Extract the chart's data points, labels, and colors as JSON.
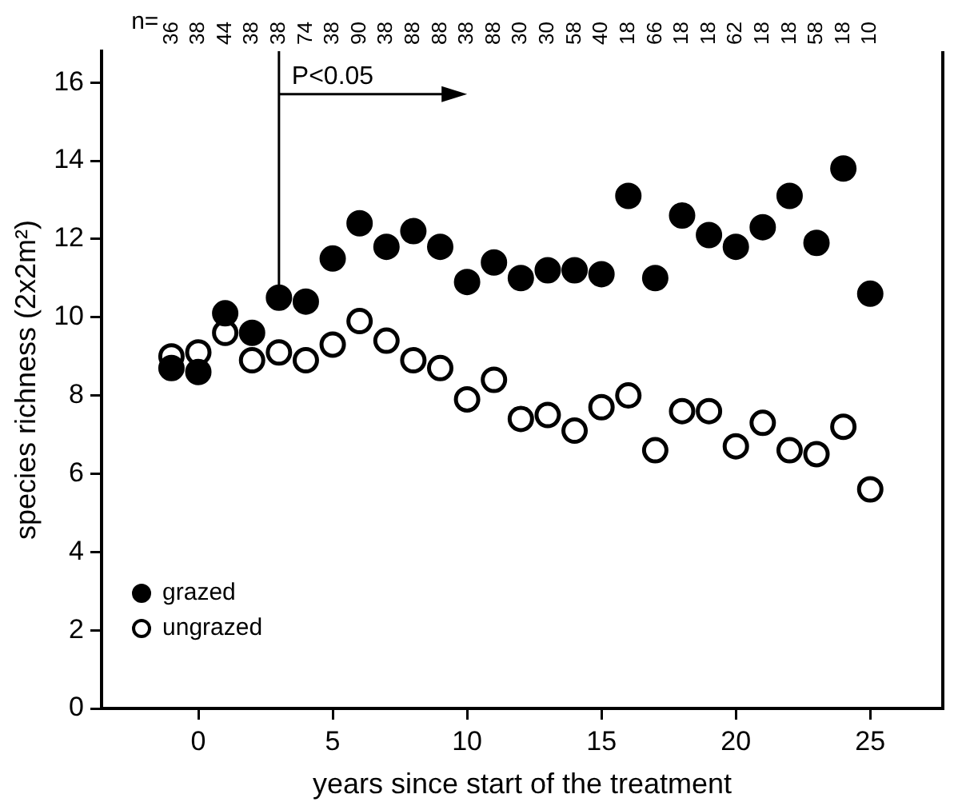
{
  "chart_data": {
    "type": "scatter",
    "xlabel": "years since start of the treatment",
    "ylabel": "species richness (2x2m²)",
    "x": [
      -1,
      0,
      1,
      2,
      3,
      4,
      5,
      6,
      7,
      8,
      9,
      10,
      11,
      12,
      13,
      14,
      15,
      16,
      17,
      18,
      19,
      20,
      21,
      22,
      23,
      24,
      25
    ],
    "series": [
      {
        "name": "grazed",
        "color": "#000000",
        "values": [
          8.7,
          8.6,
          10.1,
          9.6,
          10.5,
          10.4,
          11.5,
          12.4,
          11.8,
          12.2,
          11.8,
          10.9,
          11.4,
          11.0,
          11.2,
          11.2,
          11.1,
          13.1,
          11.0,
          12.6,
          12.1,
          11.8,
          12.3,
          13.1,
          11.9,
          13.8,
          10.6
        ]
      },
      {
        "name": "ungrazed",
        "color": "#000000",
        "values": [
          9.0,
          9.1,
          9.6,
          8.9,
          9.1,
          8.9,
          9.3,
          9.9,
          9.4,
          8.9,
          8.7,
          7.9,
          8.4,
          7.4,
          7.5,
          7.1,
          7.7,
          8.0,
          6.6,
          7.6,
          7.6,
          6.7,
          7.3,
          6.6,
          6.5,
          7.2,
          5.6
        ]
      }
    ],
    "xlim": [
      -3.6,
      27.7
    ],
    "xticks": [
      0,
      5,
      10,
      15,
      20,
      25
    ],
    "ylim": [
      0,
      16.8
    ],
    "yticks": [
      0,
      2,
      4,
      6,
      8,
      10,
      12,
      14,
      16
    ],
    "ref_lines": [
      {
        "axis": "x",
        "value": 3
      }
    ],
    "annotations": [
      "n=",
      "36",
      "38",
      "44",
      "38",
      "38",
      "74",
      "38",
      "90",
      "38",
      "88",
      "88",
      "38",
      "88",
      "30",
      "30",
      "58",
      "40",
      "18",
      "66",
      "18",
      "18",
      "62",
      "18",
      "18",
      "58",
      "18",
      "10",
      {
        "text": "P<0.05",
        "x": 3,
        "y": 15.7
      }
    ],
    "legend": "bottom left",
    "grid": false,
    "marker": "circle"
  }
}
